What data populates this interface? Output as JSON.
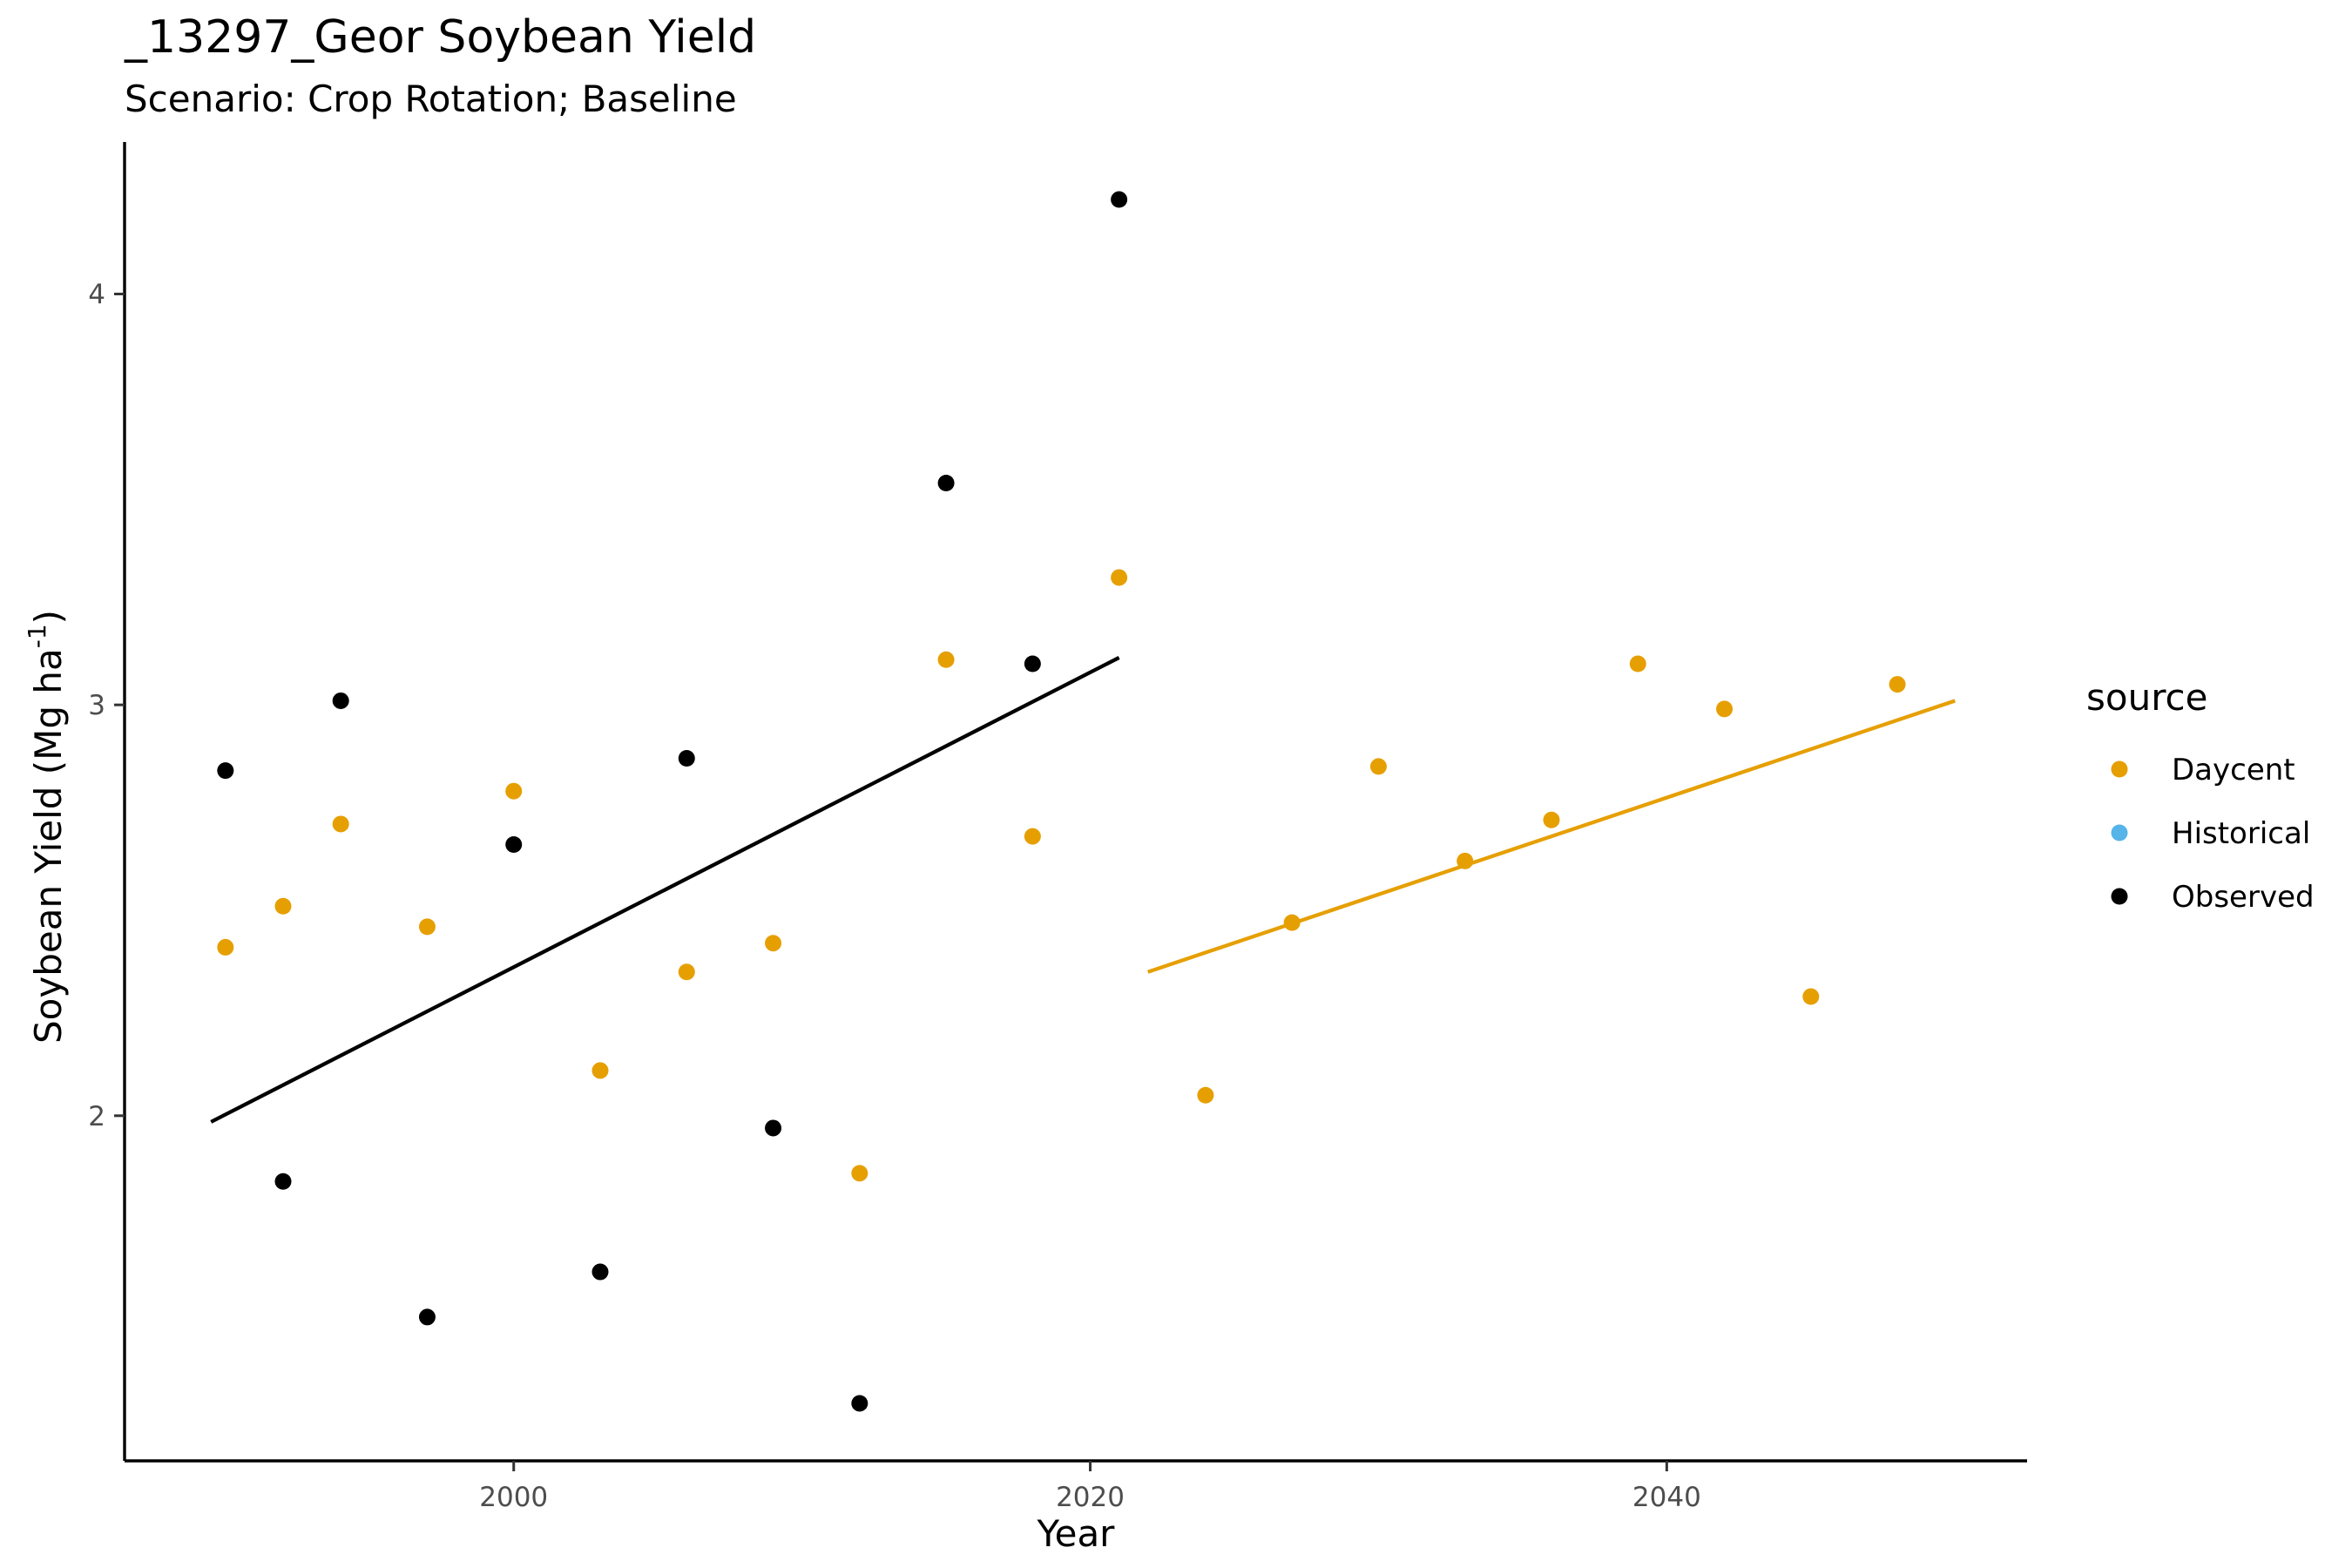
{
  "chart_data": {
    "type": "scatter",
    "title": "_13297_Geor Soybean Yield",
    "subtitle": "Scenario: Crop Rotation; Baseline",
    "xlabel": "Year",
    "ylabel": "Soybean Yield (Mg ha",
    "ylabel_superscript": "-1",
    "ylabel_suffix": ")",
    "xlim": [
      1986.5,
      2052.5
    ],
    "ylim": [
      1.16,
      4.37
    ],
    "x_ticks": [
      2000,
      2020,
      2040
    ],
    "x_tick_labels": [
      "2000",
      "2020",
      "2040"
    ],
    "y_ticks": [
      2,
      3,
      4
    ],
    "y_tick_labels": [
      "2",
      "3",
      "4"
    ],
    "grid": false,
    "legend": {
      "title": "source",
      "position": "right",
      "entries": [
        {
          "label": "Daycent",
          "color": "#E69F00"
        },
        {
          "label": "Historical",
          "color": "#56B4E9"
        },
        {
          "label": "Observed",
          "color": "#000000"
        }
      ]
    },
    "series": [
      {
        "name": "Daycent",
        "color": "#E69F00",
        "points": [
          {
            "x": 1990,
            "y": 2.41
          },
          {
            "x": 1992,
            "y": 2.51
          },
          {
            "x": 1994,
            "y": 2.71
          },
          {
            "x": 1997,
            "y": 2.46
          },
          {
            "x": 2000,
            "y": 2.79
          },
          {
            "x": 2003,
            "y": 2.11
          },
          {
            "x": 2006,
            "y": 2.35
          },
          {
            "x": 2009,
            "y": 2.42
          },
          {
            "x": 2012,
            "y": 1.86
          },
          {
            "x": 2015,
            "y": 3.11
          },
          {
            "x": 2018,
            "y": 2.68
          },
          {
            "x": 2021,
            "y": 3.31
          },
          {
            "x": 2024,
            "y": 2.05
          },
          {
            "x": 2027,
            "y": 2.47
          },
          {
            "x": 2030,
            "y": 2.85
          },
          {
            "x": 2033,
            "y": 2.62
          },
          {
            "x": 2036,
            "y": 2.72
          },
          {
            "x": 2039,
            "y": 3.1
          },
          {
            "x": 2042,
            "y": 2.99
          },
          {
            "x": 2045,
            "y": 2.29
          },
          {
            "x": 2048,
            "y": 3.05
          }
        ]
      },
      {
        "name": "Historical",
        "color": "#56B4E9",
        "points": []
      },
      {
        "name": "Observed",
        "color": "#000000",
        "points": [
          {
            "x": 1990,
            "y": 2.84
          },
          {
            "x": 1992,
            "y": 1.84
          },
          {
            "x": 1994,
            "y": 3.01
          },
          {
            "x": 1997,
            "y": 1.51
          },
          {
            "x": 2000,
            "y": 2.66
          },
          {
            "x": 2003,
            "y": 1.62
          },
          {
            "x": 2006,
            "y": 2.87
          },
          {
            "x": 2009,
            "y": 1.97
          },
          {
            "x": 2012,
            "y": 1.3
          },
          {
            "x": 2015,
            "y": 3.54
          },
          {
            "x": 2018,
            "y": 3.1
          },
          {
            "x": 2021,
            "y": 4.23
          }
        ]
      }
    ],
    "trend_lines": [
      {
        "series": "Observed",
        "color": "#000000",
        "x": [
          1989.5,
          2021
        ],
        "y": [
          1.985,
          3.115
        ]
      },
      {
        "series": "Daycent",
        "color": "#E69F00",
        "x": [
          2022,
          2050
        ],
        "y": [
          2.35,
          3.01
        ]
      }
    ]
  }
}
